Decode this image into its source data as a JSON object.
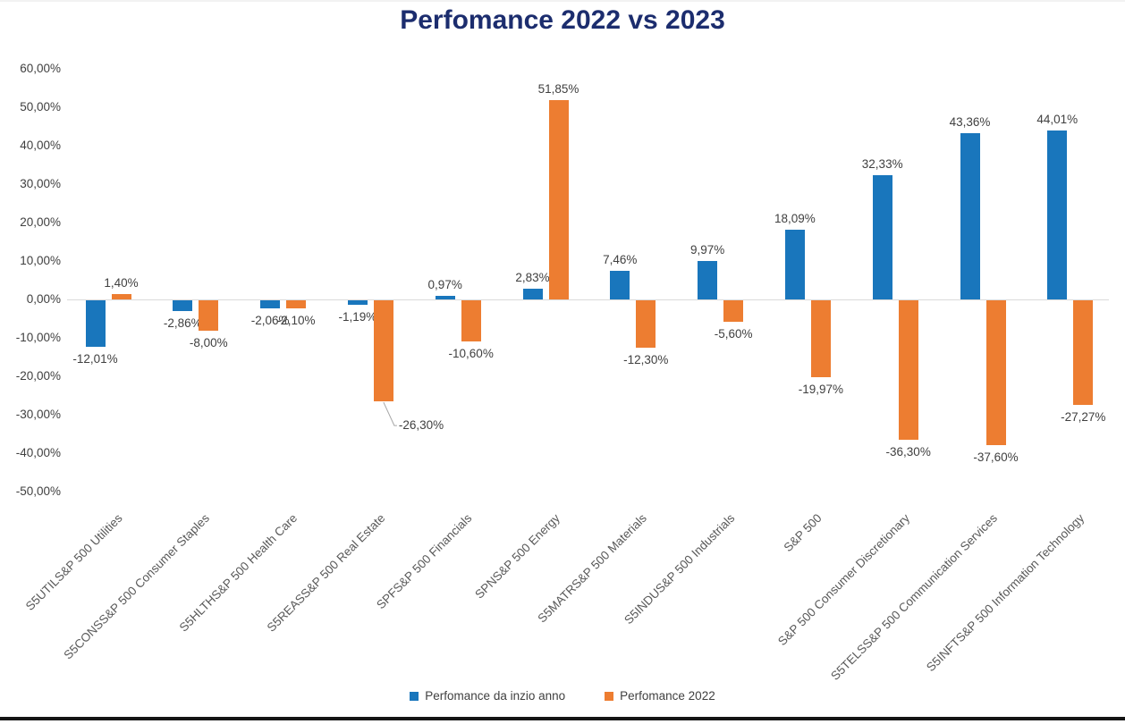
{
  "chart_data": {
    "type": "bar",
    "title": "Perfomance 2022 vs 2023",
    "categories": [
      "S5UTILS&P 500 Utilities",
      "S5CONSS&P 500 Consumer Staples",
      "S5HLTHS&P 500 Health Care",
      "S5REASS&P 500 Real Estate",
      "SPFS&P 500 Financials",
      "SPNS&P 500 Energy",
      "S5MATRS&P 500 Materials",
      "S5INDUS&P 500 Industrials",
      "S&P 500",
      "S&P 500 Consumer Discretionary",
      "S5TELSS&P 500 Communication Services",
      "S5INFTS&P 500 Information Technology"
    ],
    "series": [
      {
        "name": "Perfomance da inzio anno",
        "color": "#1976BC",
        "values": [
          -12.01,
          -2.86,
          -2.06,
          -1.19,
          0.97,
          2.83,
          7.46,
          9.97,
          18.09,
          32.33,
          43.36,
          44.01
        ],
        "labels": [
          "-12,01%",
          "-2,86%",
          "-2,06%",
          "-1,19%",
          "0,97%",
          "2,83%",
          "7,46%",
          "9,97%",
          "18,09%",
          "32,33%",
          "43,36%",
          "44,01%"
        ]
      },
      {
        "name": "Perfomance 2022",
        "color": "#ED7D31",
        "values": [
          1.4,
          -8.0,
          -2.1,
          -26.3,
          -10.6,
          51.85,
          -12.3,
          -5.6,
          -19.97,
          -36.3,
          -37.6,
          -27.27
        ],
        "labels": [
          "1,40%",
          "-8,00%",
          "-2,10%",
          "-26,30%",
          "-10,60%",
          "51,85%",
          "-12,30%",
          "-5,60%",
          "-19,97%",
          "-36,30%",
          "-37,60%",
          "-27,27%"
        ]
      }
    ],
    "y_axis": {
      "min": -50,
      "max": 60,
      "step": 10,
      "tick_labels": [
        "60,00%",
        "50,00%",
        "40,00%",
        "30,00%",
        "20,00%",
        "10,00%",
        "0,00%",
        "-10,00%",
        "-20,00%",
        "-30,00%",
        "-40,00%",
        "-50,00%"
      ],
      "tick_values": [
        60,
        50,
        40,
        30,
        20,
        10,
        0,
        -10,
        -20,
        -30,
        -40,
        -50
      ]
    },
    "legend": {
      "position": "bottom",
      "entries": [
        "Perfomance da inzio anno",
        "Perfomance 2022"
      ]
    },
    "grid": false,
    "colors": {
      "title": "#1C2D6E",
      "axis_text": "#404040",
      "value_label": "#404040",
      "category_label": "#595959",
      "zero_line": "#D9D9D9",
      "callout_line": "#A6A6A6"
    }
  }
}
